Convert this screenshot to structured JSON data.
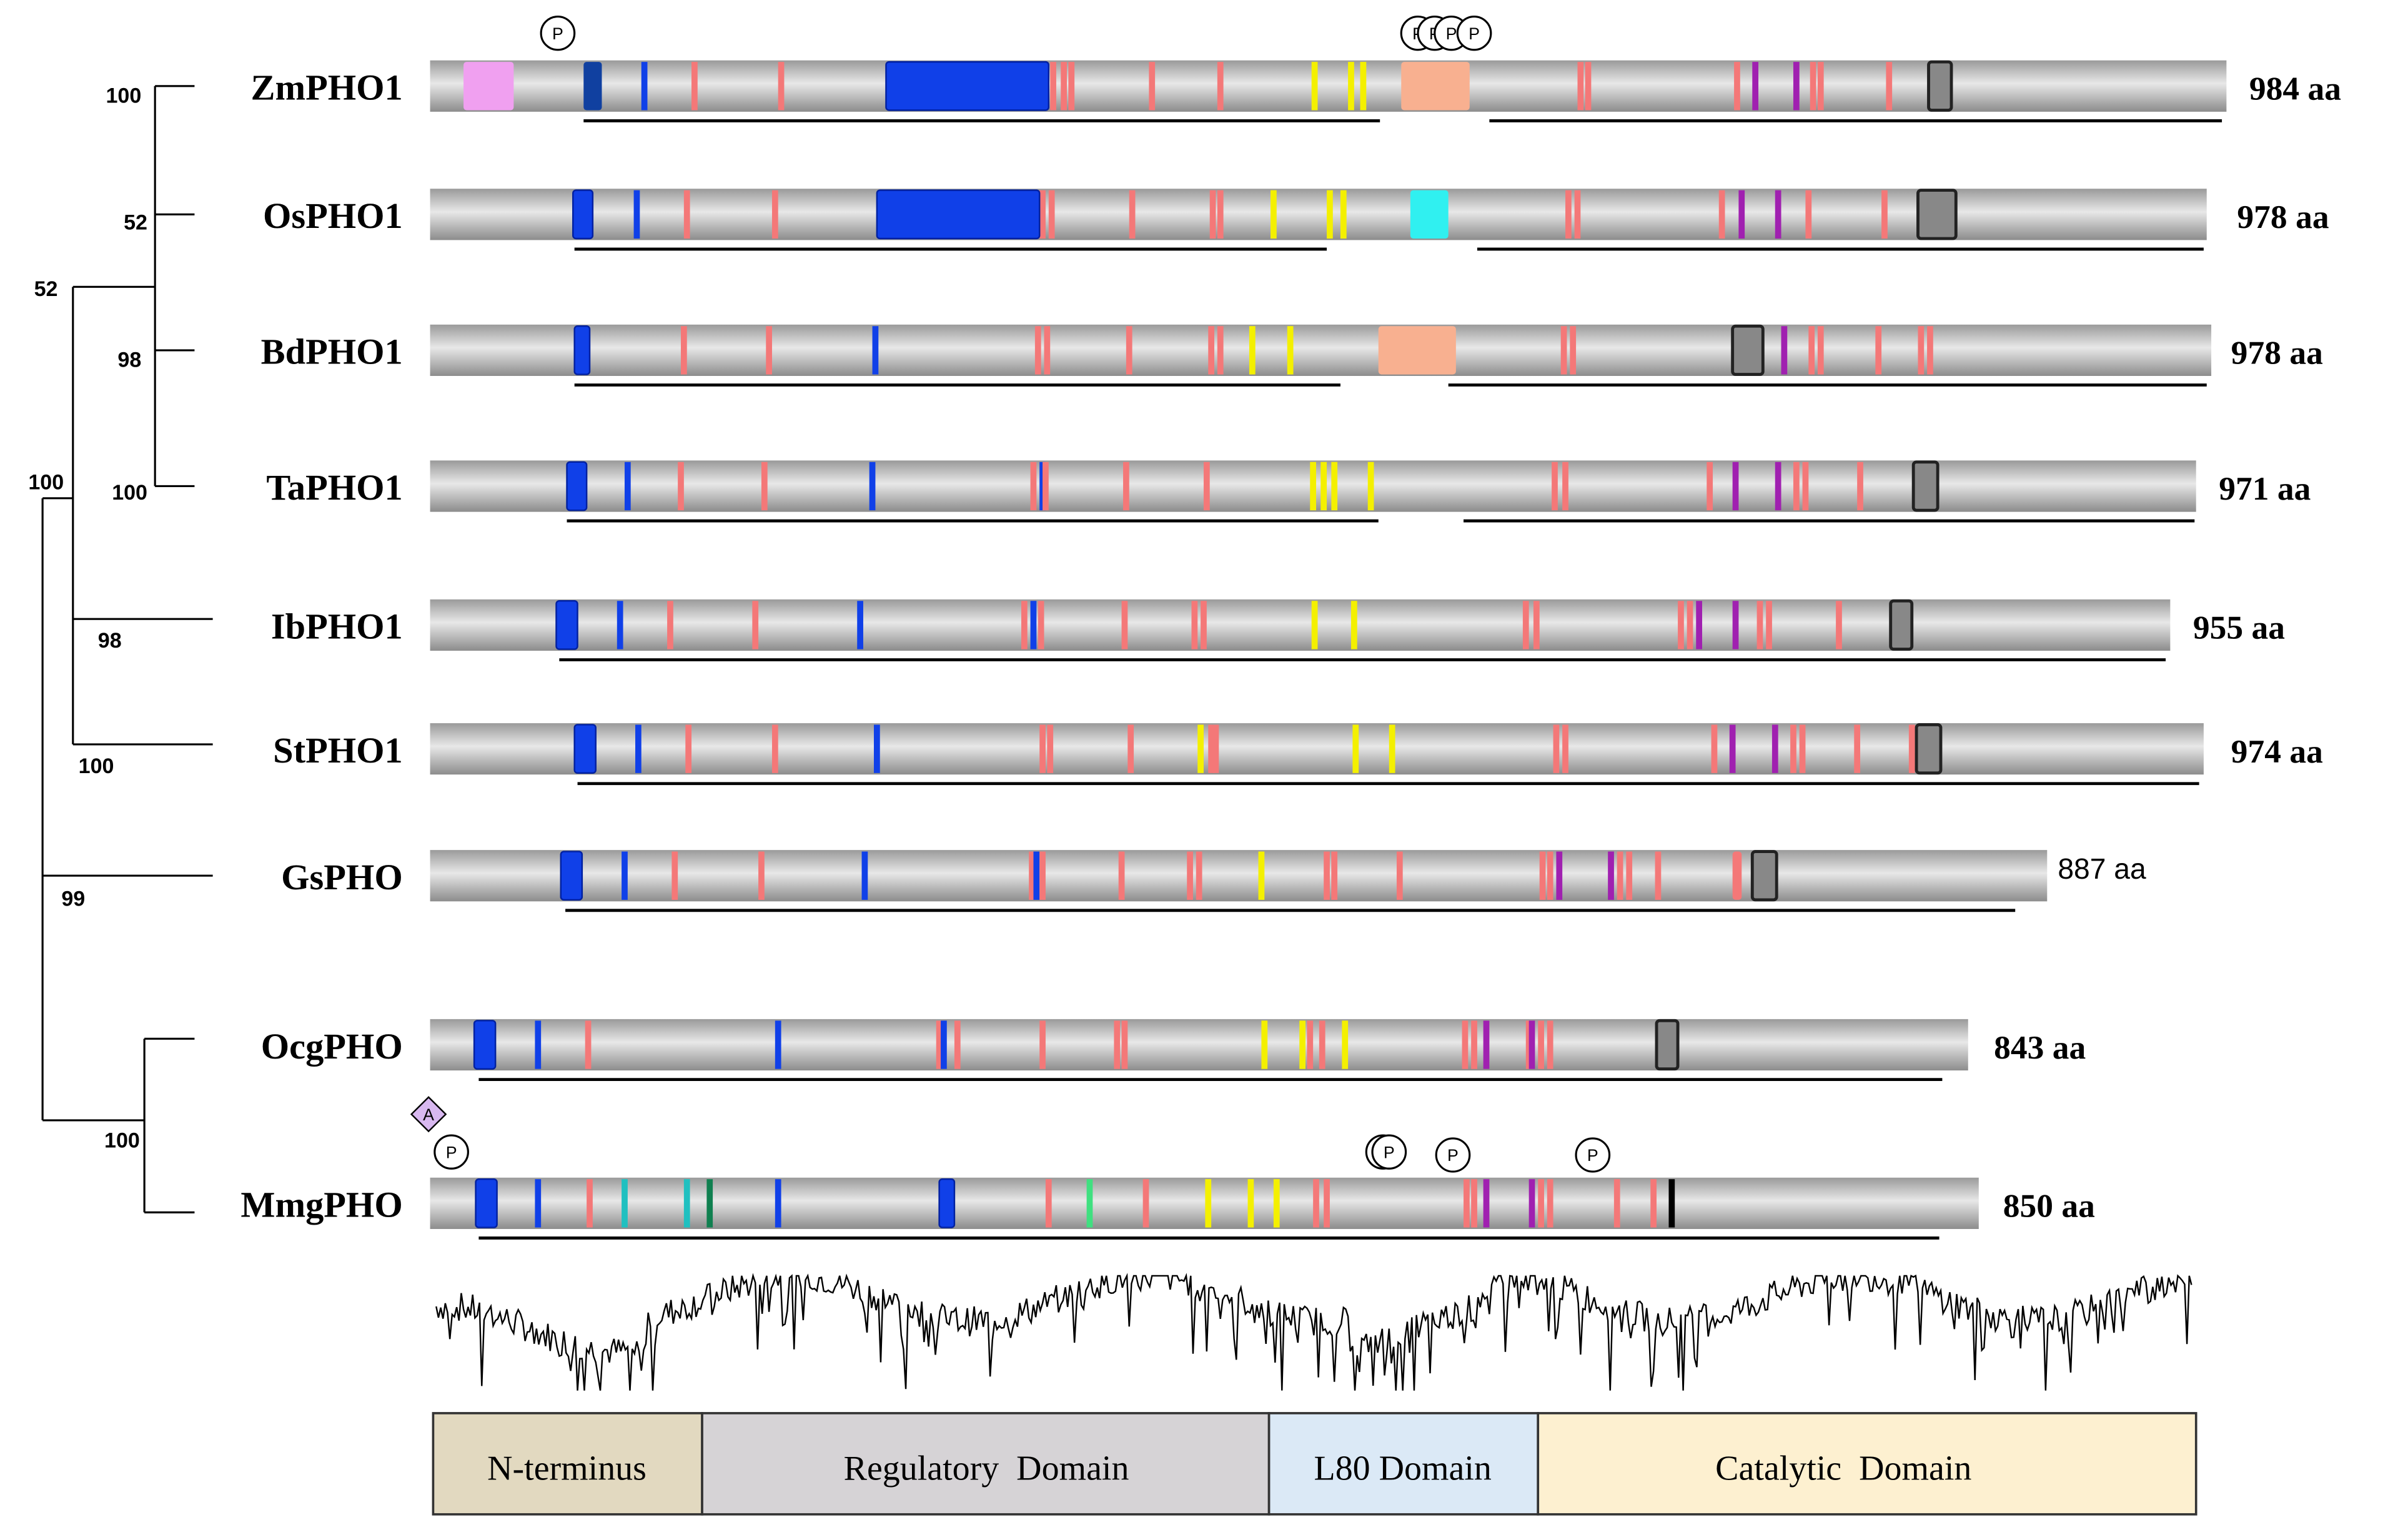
{
  "proteins": [
    {
      "name": "ZmPHO1",
      "length": "984 aa"
    },
    {
      "name": "OsPHO1",
      "length": "978 aa"
    },
    {
      "name": "BdPHO1",
      "length": "978 aa"
    },
    {
      "name": "TaPHO1",
      "length": "971 aa"
    },
    {
      "name": "IbPHO1",
      "length": "955 aa"
    },
    {
      "name": "StPHO1",
      "length": "974 aa"
    },
    {
      "name": "GsPHO",
      "length": "887 aa"
    },
    {
      "name": "OcgPHO",
      "length": "843 aa"
    },
    {
      "name": "MmgPHO",
      "length": "850 aa"
    }
  ],
  "bootstrap": [
    "100",
    "52",
    "52",
    "98",
    "100",
    "100",
    "98",
    "100",
    "99",
    "100"
  ],
  "domains": [
    "N-terminus",
    "Regulatory  Domain",
    "L80 Domain",
    "Catalytic  Domain"
  ],
  "markers": {
    "phospho": "P",
    "acetyl": "A"
  }
}
